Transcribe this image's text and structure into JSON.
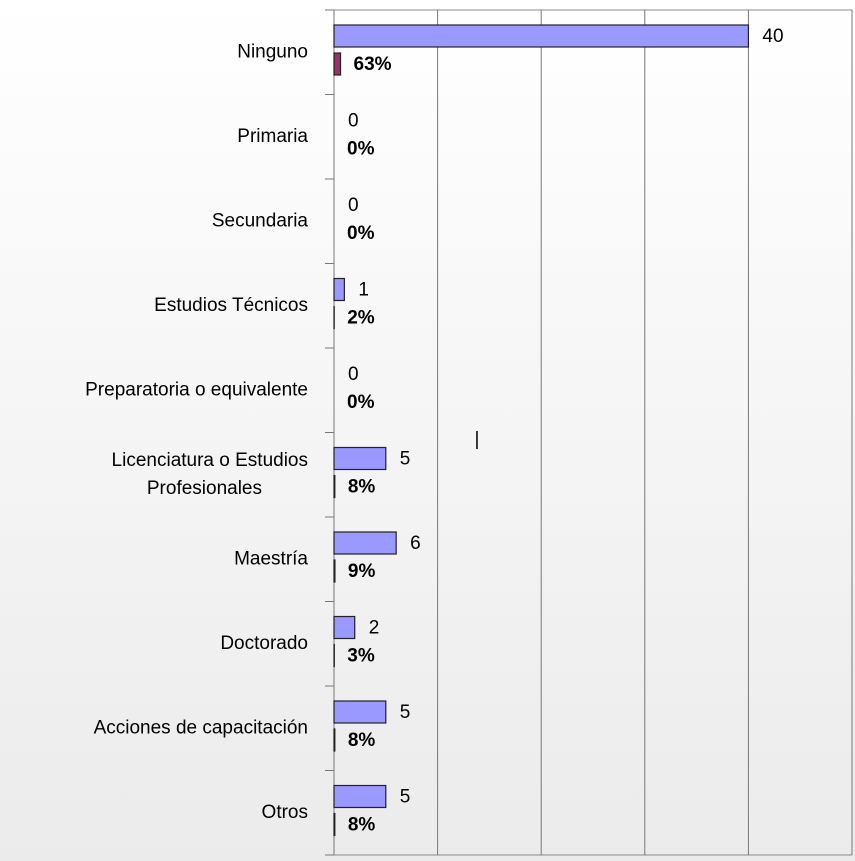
{
  "chart_data": {
    "type": "bar",
    "orientation": "horizontal",
    "categories": [
      "Ninguno",
      "Primaria",
      "Secundaria",
      "Estudios Técnicos",
      "Preparatoria o equivalente",
      "Licenciatura o Estudios Profesionales",
      "Maestría",
      "Doctorado",
      "Acciones de capacitación",
      "Otros"
    ],
    "series": [
      {
        "color": "#9999ff",
        "values": [
          40,
          0,
          0,
          1,
          0,
          5,
          6,
          2,
          5,
          5
        ]
      },
      {
        "color": "#993366",
        "values": [
          0.63,
          0,
          0,
          0.02,
          0,
          0.08,
          0.09,
          0.03,
          0.08,
          0.08
        ],
        "value_labels": [
          "63%",
          "0%",
          "0%",
          "2%",
          "0%",
          "8%",
          "9%",
          "3%",
          "8%",
          "8%"
        ]
      }
    ],
    "xlim": [
      0,
      50
    ],
    "xticks": [
      0,
      10,
      20,
      30,
      40,
      50
    ],
    "grid": true,
    "annotation": "|"
  }
}
